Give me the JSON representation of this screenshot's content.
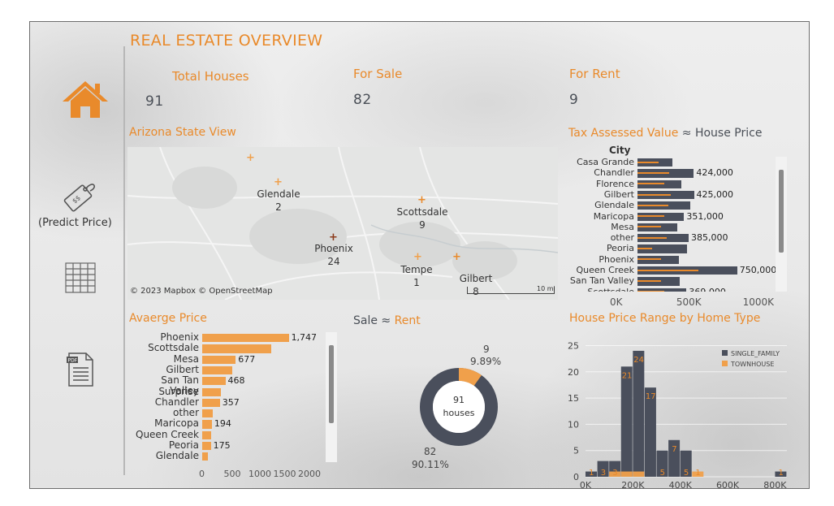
{
  "page_title": "REAL ESTATE OVERVIEW",
  "nav": {
    "predict_label": "(Predict Price)"
  },
  "kpis": {
    "total_label": "Total Houses",
    "total_value": "91",
    "sale_label": "For Sale",
    "sale_value": "82",
    "rent_label": "For Rent",
    "rent_value": "9"
  },
  "map": {
    "title": "Arizona State View",
    "attribution": "© 2023 Mapbox © OpenStreetMap",
    "scale": "10 mi",
    "cities": [
      {
        "name": "Glendale",
        "count": "2"
      },
      {
        "name": "Scottsdale",
        "count": "9"
      },
      {
        "name": "Phoenix",
        "count": "24"
      },
      {
        "name": "Tempe",
        "count": "1"
      },
      {
        "name": "Gilbert",
        "count": "8"
      }
    ]
  },
  "tax_chart": {
    "title_part1": "Tax Assessed Value",
    "approx": "≈",
    "title_part2": "House Price",
    "axis_header": "City",
    "colors": {
      "bar": "#4a4f5c",
      "line": "#e98a2b"
    },
    "x_ticks": [
      "0K",
      "500K",
      "1000K"
    ],
    "rows": [
      {
        "city": "Casa Grande",
        "value": 260000,
        "tax": 160000,
        "label": ""
      },
      {
        "city": "Chandler",
        "value": 424000,
        "tax": 240000,
        "label": "424,000"
      },
      {
        "city": "Florence",
        "value": 330000,
        "tax": 200000,
        "label": ""
      },
      {
        "city": "Gilbert",
        "value": 425000,
        "tax": 250000,
        "label": "425,000"
      },
      {
        "city": "Glendale",
        "value": 400000,
        "tax": 230000,
        "label": ""
      },
      {
        "city": "Maricopa",
        "value": 351000,
        "tax": 200000,
        "label": "351,000"
      },
      {
        "city": "Mesa",
        "value": 300000,
        "tax": 180000,
        "label": ""
      },
      {
        "city": "other",
        "value": 385000,
        "tax": 220000,
        "label": "385,000"
      },
      {
        "city": "Peoria",
        "value": 370000,
        "tax": 110000,
        "label": ""
      },
      {
        "city": "Phoenix",
        "value": 310000,
        "tax": 180000,
        "label": ""
      },
      {
        "city": "Queen Creek",
        "value": 750000,
        "tax": 460000,
        "label": "750,000"
      },
      {
        "city": "San Tan Valley",
        "value": 320000,
        "tax": 180000,
        "label": ""
      },
      {
        "city": "Scottsdale",
        "value": 369000,
        "tax": 200000,
        "label": "369,000"
      }
    ]
  },
  "avg_price": {
    "title": "Avaerge Price",
    "color": "#f0a04b",
    "x_ticks": [
      "0",
      "500",
      "1000",
      "1500",
      "2000"
    ],
    "rows": [
      {
        "city": "Phoenix",
        "value": 1747,
        "label": "1,747"
      },
      {
        "city": "Scottsdale",
        "value": 1390,
        "label": ""
      },
      {
        "city": "Mesa",
        "value": 677,
        "label": "677"
      },
      {
        "city": "Gilbert",
        "value": 610,
        "label": ""
      },
      {
        "city": "San Tan Valley",
        "value": 468,
        "label": "468"
      },
      {
        "city": "Surprise",
        "value": 370,
        "label": ""
      },
      {
        "city": "Chandler",
        "value": 357,
        "label": "357"
      },
      {
        "city": "other",
        "value": 220,
        "label": ""
      },
      {
        "city": "Maricopa",
        "value": 194,
        "label": "194"
      },
      {
        "city": "Queen Creek",
        "value": 180,
        "label": ""
      },
      {
        "city": "Peoria",
        "value": 175,
        "label": "175"
      },
      {
        "city": "Glendale",
        "value": 120,
        "label": ""
      }
    ]
  },
  "donut": {
    "title_part1": "Sale",
    "approx": "≈",
    "title_part2": "Rent",
    "center_value": "91",
    "center_unit": "houses",
    "rent_count": "9",
    "rent_pct": "9.89%",
    "sale_count": "82",
    "sale_pct": "90.11%",
    "rent_fraction": 0.0989,
    "colors": {
      "sale": "#4a4f5c",
      "rent": "#f0a04b"
    }
  },
  "histogram": {
    "title": "House Price Range by Home Type",
    "legend": [
      "SINGLE_FAMILY",
      "TOWNHOUSE"
    ],
    "colors": {
      "single": "#4a4f5c",
      "town": "#f0a04b",
      "label": "#e98a2b"
    },
    "y_ticks": [
      "0",
      "5",
      "10",
      "15",
      "20",
      "25"
    ],
    "x_ticks": [
      "0K",
      "200K",
      "400K",
      "600K",
      "800K"
    ],
    "bins": [
      {
        "start": 0,
        "single": 1,
        "town": 0,
        "label": "1"
      },
      {
        "start": 50000,
        "single": 3,
        "town": 0,
        "label": "3"
      },
      {
        "start": 100000,
        "single": 3,
        "town": 1,
        "label": "3"
      },
      {
        "start": 150000,
        "single": 21,
        "town": 1,
        "label": "21"
      },
      {
        "start": 200000,
        "single": 24,
        "town": 1,
        "label": "24"
      },
      {
        "start": 250000,
        "single": 17,
        "town": 0,
        "label": "17"
      },
      {
        "start": 300000,
        "single": 5,
        "town": 0,
        "label": "5"
      },
      {
        "start": 350000,
        "single": 7,
        "town": 0,
        "label": "7"
      },
      {
        "start": 400000,
        "single": 5,
        "town": 0,
        "label": "5"
      },
      {
        "start": 450000,
        "single": 0,
        "town": 1,
        "label": "1"
      },
      {
        "start": 800000,
        "single": 1,
        "town": 0,
        "label": "1"
      }
    ]
  }
}
